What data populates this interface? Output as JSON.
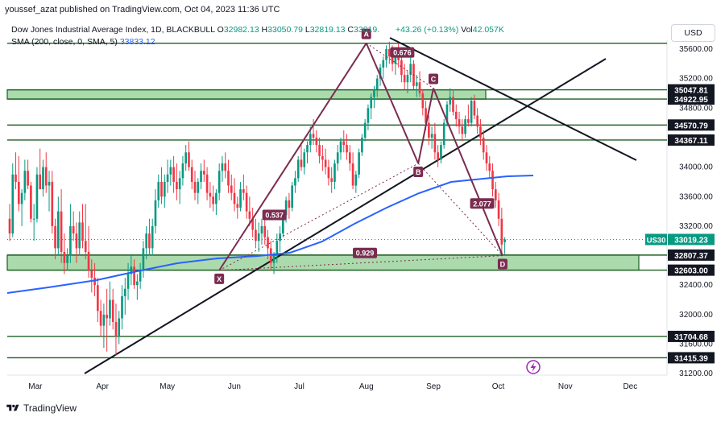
{
  "header": {
    "published_line": "youssef_azat published on TradingView.com, Oct 04, 2023 11:36 UTC",
    "symbol_title": "Dow Jones Industrial Average Index, 1D, BLACKBULL",
    "ohlc": {
      "o_label": "O",
      "o": "32982.13",
      "h_label": "H",
      "h": "33050.79",
      "l_label": "L",
      "l": "32819.13",
      "c_label": "C",
      "c": "33019."
    },
    "change": "+43.26 (+0.13%)",
    "volume_label": "Vol",
    "volume": "42.057K",
    "sma_label": "SMA (200, close, 0, SMA, 5)",
    "sma_value": "33833.12"
  },
  "currency_button": "USD",
  "footer": {
    "brand": "TradingView"
  },
  "colors": {
    "up": "#089981",
    "down": "#f23645",
    "sma": "#2962ff",
    "zone": "#66bb6a",
    "pattern": "#7b2c50",
    "dark": "#131722"
  },
  "icons": {
    "flash": "flash-icon",
    "logo": "tradingview-logo-icon"
  },
  "chart_data": {
    "type": "candlestick",
    "title": "Dow Jones Industrial Average Index, 1D, BLACKBULL",
    "x_tick_labels": [
      "Mar",
      "Apr",
      "May",
      "Jun",
      "Jul",
      "Aug",
      "Sep",
      "Oct",
      "Nov",
      "Dec"
    ],
    "y_tick_labels": [
      "35600.00",
      "35200.00",
      "34800.00",
      "34000.00",
      "33600.00",
      "33200.00",
      "32400.00",
      "32000.00",
      "31600.00",
      "31200.00"
    ],
    "price_labels": [
      "35047.81",
      "34922.95",
      "34570.79",
      "34367.11",
      "32807.37",
      "32603.00",
      "31704.68",
      "31415.39"
    ],
    "last_price": {
      "label": "US30",
      "value": "33019.23"
    },
    "support_zones": [
      {
        "top": 35047.81,
        "bottom": 34922.95
      },
      {
        "top": 32807.37,
        "bottom": 32603.0
      }
    ],
    "horizontal_lines": [
      34570.79,
      34367.11,
      31704.68,
      31415.39
    ],
    "harmonic_points": [
      {
        "label": "X",
        "date": "2023-05-25",
        "price": 32600
      },
      {
        "label": "A",
        "date": "2023-08-01",
        "price": 35680
      },
      {
        "label": "B",
        "date": "2023-08-25",
        "price": 34050
      },
      {
        "label": "C",
        "date": "2023-09-01",
        "price": 35070
      },
      {
        "label": "D",
        "date": "2023-10-03",
        "price": 32800
      }
    ],
    "ratios": [
      "0.537",
      "0.676",
      "2.077",
      "0.929"
    ],
    "sma200": {
      "name": "SMA (200, close, 0, SMA, 5)",
      "last": 33833.12
    },
    "ohlc_daily": [
      [
        33300,
        33500,
        33000,
        33100
      ],
      [
        33100,
        34050,
        33050,
        33900
      ],
      [
        33900,
        34200,
        33700,
        33800
      ],
      [
        33800,
        34150,
        33400,
        33500
      ],
      [
        33500,
        33700,
        33200,
        33650
      ],
      [
        33650,
        34100,
        33550,
        33950
      ],
      [
        33950,
        34100,
        33700,
        33750
      ],
      [
        33750,
        33800,
        33250,
        33300
      ],
      [
        33300,
        33500,
        33000,
        33300
      ],
      [
        33300,
        34000,
        33250,
        33900
      ],
      [
        33900,
        34250,
        33700,
        33700
      ],
      [
        33700,
        34100,
        33600,
        34000
      ],
      [
        34000,
        34200,
        33650,
        33750
      ],
      [
        33750,
        33950,
        33400,
        33800
      ],
      [
        33800,
        33950,
        33100,
        33200
      ],
      [
        33200,
        33300,
        32750,
        32900
      ],
      [
        32900,
        33600,
        32800,
        33400
      ],
      [
        33400,
        33700,
        32700,
        32850
      ],
      [
        32850,
        33100,
        32550,
        32700
      ],
      [
        32700,
        32900,
        32600,
        32800
      ],
      [
        32800,
        33500,
        32700,
        33200
      ],
      [
        33200,
        33400,
        33000,
        33100
      ],
      [
        33100,
        33250,
        32700,
        32900
      ],
      [
        32900,
        33400,
        32800,
        33250
      ],
      [
        33250,
        33500,
        32900,
        33000
      ],
      [
        33000,
        33500,
        32750,
        32850
      ],
      [
        32850,
        33200,
        32500,
        32600
      ],
      [
        32600,
        32750,
        32300,
        32500
      ],
      [
        32500,
        32700,
        32250,
        32400
      ],
      [
        32400,
        32500,
        31900,
        32050
      ],
      [
        32050,
        32200,
        31700,
        31850
      ],
      [
        31850,
        32150,
        31550,
        32000
      ],
      [
        32000,
        32350,
        31500,
        31950
      ],
      [
        31950,
        32450,
        31850,
        32200
      ],
      [
        32200,
        32350,
        31800,
        31900
      ],
      [
        31900,
        32150,
        31450,
        31700
      ],
      [
        31700,
        32050,
        31600,
        31950
      ],
      [
        31950,
        32400,
        31800,
        32250
      ],
      [
        32250,
        32500,
        32000,
        32350
      ],
      [
        32350,
        32700,
        32200,
        32550
      ],
      [
        32550,
        32800,
        32400,
        32650
      ],
      [
        32650,
        32750,
        32350,
        32400
      ],
      [
        32400,
        32550,
        32200,
        32450
      ],
      [
        32450,
        32700,
        32350,
        32600
      ],
      [
        32600,
        33000,
        32500,
        32900
      ],
      [
        32900,
        33200,
        32750,
        33100
      ],
      [
        33100,
        33300,
        32800,
        32900
      ],
      [
        32900,
        33300,
        32800,
        33200
      ],
      [
        33200,
        33700,
        33100,
        33550
      ],
      [
        33550,
        33900,
        33450,
        33800
      ],
      [
        33800,
        34000,
        33500,
        33600
      ],
      [
        33600,
        33900,
        33450,
        33800
      ],
      [
        33800,
        34100,
        33650,
        33900
      ],
      [
        33900,
        34100,
        33750,
        34000
      ],
      [
        34000,
        34150,
        33650,
        33800
      ],
      [
        33800,
        34050,
        33550,
        33700
      ],
      [
        33700,
        33950,
        33500,
        33850
      ],
      [
        33850,
        34150,
        33750,
        34050
      ],
      [
        34050,
        34300,
        33950,
        34200
      ],
      [
        34200,
        34350,
        33950,
        34000
      ],
      [
        34000,
        34100,
        33700,
        33800
      ],
      [
        33800,
        33950,
        33550,
        33650
      ],
      [
        33650,
        33850,
        33500,
        33800
      ],
      [
        33800,
        34050,
        33700,
        33950
      ],
      [
        33950,
        34100,
        33800,
        33900
      ],
      [
        33900,
        34000,
        33550,
        33650
      ],
      [
        33650,
        33800,
        33450,
        33600
      ],
      [
        33600,
        33750,
        33400,
        33500
      ],
      [
        33500,
        33700,
        33350,
        33650
      ],
      [
        33650,
        34050,
        33550,
        33950
      ],
      [
        33950,
        34150,
        33800,
        34050
      ],
      [
        34050,
        34200,
        33850,
        33950
      ],
      [
        33950,
        34100,
        33650,
        33750
      ],
      [
        33750,
        33900,
        33550,
        33650
      ],
      [
        33650,
        33850,
        33400,
        33500
      ],
      [
        33500,
        33600,
        33300,
        33450
      ],
      [
        33450,
        33800,
        33400,
        33700
      ],
      [
        33700,
        33900,
        33550,
        33650
      ],
      [
        33650,
        33750,
        33300,
        33400
      ],
      [
        33400,
        33600,
        33200,
        33300
      ],
      [
        33300,
        33450,
        33050,
        33150
      ],
      [
        33150,
        33300,
        32900,
        33000
      ],
      [
        33000,
        33250,
        32850,
        33100
      ],
      [
        33100,
        33300,
        32950,
        33200
      ],
      [
        33200,
        33300,
        32950,
        33050
      ],
      [
        33050,
        33150,
        32750,
        32900
      ],
      [
        32900,
        33000,
        32600,
        32700
      ],
      [
        32700,
        32850,
        32550,
        32800
      ],
      [
        32800,
        33100,
        32700,
        33000
      ],
      [
        33000,
        33200,
        32850,
        33100
      ],
      [
        33100,
        33400,
        33050,
        33350
      ],
      [
        33350,
        33600,
        33250,
        33550
      ],
      [
        33550,
        33650,
        33300,
        33450
      ],
      [
        33450,
        33800,
        33400,
        33750
      ],
      [
        33750,
        33950,
        33650,
        33850
      ],
      [
        33850,
        34150,
        33800,
        34100
      ],
      [
        34100,
        34300,
        33950,
        34000
      ],
      [
        34000,
        34250,
        33900,
        34200
      ],
      [
        34200,
        34350,
        34050,
        34300
      ],
      [
        34300,
        34550,
        34200,
        34450
      ],
      [
        34450,
        34650,
        34300,
        34400
      ],
      [
        34400,
        34500,
        34200,
        34300
      ],
      [
        34300,
        34400,
        34050,
        34150
      ],
      [
        34150,
        34300,
        33950,
        34100
      ],
      [
        34100,
        34250,
        33900,
        34000
      ],
      [
        34000,
        34100,
        33750,
        33850
      ],
      [
        33850,
        34000,
        33650,
        33800
      ],
      [
        33800,
        34100,
        33700,
        34050
      ],
      [
        34050,
        34300,
        33950,
        34200
      ],
      [
        34200,
        34400,
        34100,
        34350
      ],
      [
        34350,
        34500,
        34200,
        34300
      ],
      [
        34300,
        34450,
        34100,
        34200
      ],
      [
        34200,
        34300,
        33950,
        34050
      ],
      [
        34050,
        34200,
        33700,
        33750
      ],
      [
        33750,
        33950,
        33650,
        33900
      ],
      [
        33900,
        34250,
        33850,
        34200
      ],
      [
        34200,
        34450,
        34150,
        34400
      ],
      [
        34400,
        34650,
        34350,
        34600
      ],
      [
        34600,
        34850,
        34500,
        34800
      ],
      [
        34800,
        35000,
        34650,
        34950
      ],
      [
        34950,
        35100,
        34800,
        35050
      ],
      [
        35050,
        35250,
        34950,
        35200
      ],
      [
        35200,
        35400,
        35100,
        35350
      ],
      [
        35350,
        35500,
        35200,
        35450
      ],
      [
        35450,
        35650,
        35350,
        35600
      ],
      [
        35600,
        35700,
        35400,
        35500
      ],
      [
        35500,
        35650,
        35300,
        35400
      ],
      [
        35400,
        35600,
        35250,
        35550
      ],
      [
        35550,
        35680,
        35350,
        35450
      ],
      [
        35450,
        35550,
        35150,
        35250
      ],
      [
        35250,
        35400,
        35050,
        35150
      ],
      [
        35150,
        35300,
        35000,
        35250
      ],
      [
        35250,
        35500,
        35150,
        35400
      ],
      [
        35400,
        35450,
        35050,
        35100
      ],
      [
        35100,
        35250,
        34950,
        35150
      ],
      [
        35150,
        35300,
        34950,
        35000
      ],
      [
        35000,
        35050,
        34700,
        34800
      ],
      [
        34800,
        34900,
        34500,
        34600
      ],
      [
        34600,
        34700,
        34300,
        34400
      ],
      [
        34400,
        34550,
        34250,
        34450
      ],
      [
        34450,
        34600,
        34100,
        34200
      ],
      [
        34200,
        34300,
        34000,
        34100
      ],
      [
        34100,
        34350,
        34050,
        34300
      ],
      [
        34300,
        34650,
        34250,
        34600
      ],
      [
        34600,
        34900,
        34550,
        34850
      ],
      [
        34850,
        35070,
        34750,
        34950
      ],
      [
        34950,
        35050,
        34700,
        34750
      ],
      [
        34750,
        34850,
        34550,
        34650
      ],
      [
        34650,
        34750,
        34450,
        34550
      ],
      [
        34550,
        34650,
        34350,
        34450
      ],
      [
        34450,
        34700,
        34400,
        34650
      ],
      [
        34650,
        34850,
        34550,
        34600
      ],
      [
        34600,
        34950,
        34550,
        34900
      ],
      [
        34900,
        34980,
        34650,
        34700
      ],
      [
        34700,
        34800,
        34450,
        34550
      ],
      [
        34550,
        34650,
        34300,
        34400
      ],
      [
        34400,
        34500,
        34100,
        34200
      ],
      [
        34200,
        34300,
        33950,
        34050
      ],
      [
        34050,
        34150,
        33850,
        33950
      ],
      [
        33950,
        34050,
        33600,
        33700
      ],
      [
        33700,
        33800,
        33450,
        33550
      ],
      [
        33550,
        33650,
        33200,
        33300
      ],
      [
        33300,
        33450,
        32820,
        32950
      ],
      [
        32982,
        33050,
        32819,
        33019
      ]
    ]
  }
}
